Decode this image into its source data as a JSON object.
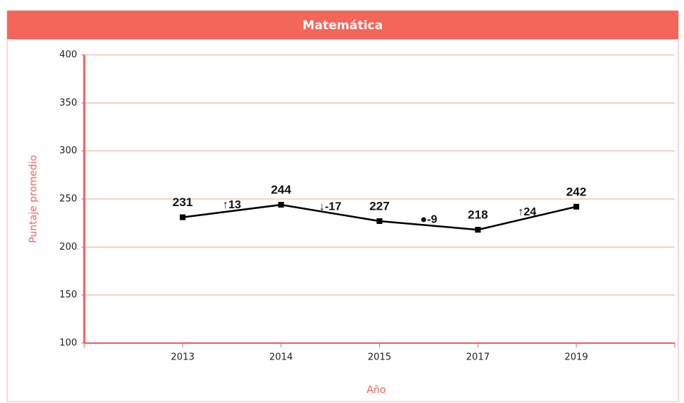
{
  "chart_data": {
    "type": "line",
    "title": "Matemática",
    "categories": [
      "2013",
      "2014",
      "2015",
      "2017",
      "2019"
    ],
    "series": [
      {
        "name": "Matemática",
        "color": "#000000",
        "values": [
          231,
          244,
          227,
          218,
          242
        ]
      }
    ],
    "annotations": [
      "↑13",
      "↓-17",
      "●-9",
      "↑24"
    ],
    "xlabel": "Año",
    "ylabel": "Puntaje promedio",
    "ylim": [
      100,
      400
    ],
    "yticks": [
      100,
      150,
      200,
      250,
      300,
      350,
      400
    ],
    "grid": true
  }
}
